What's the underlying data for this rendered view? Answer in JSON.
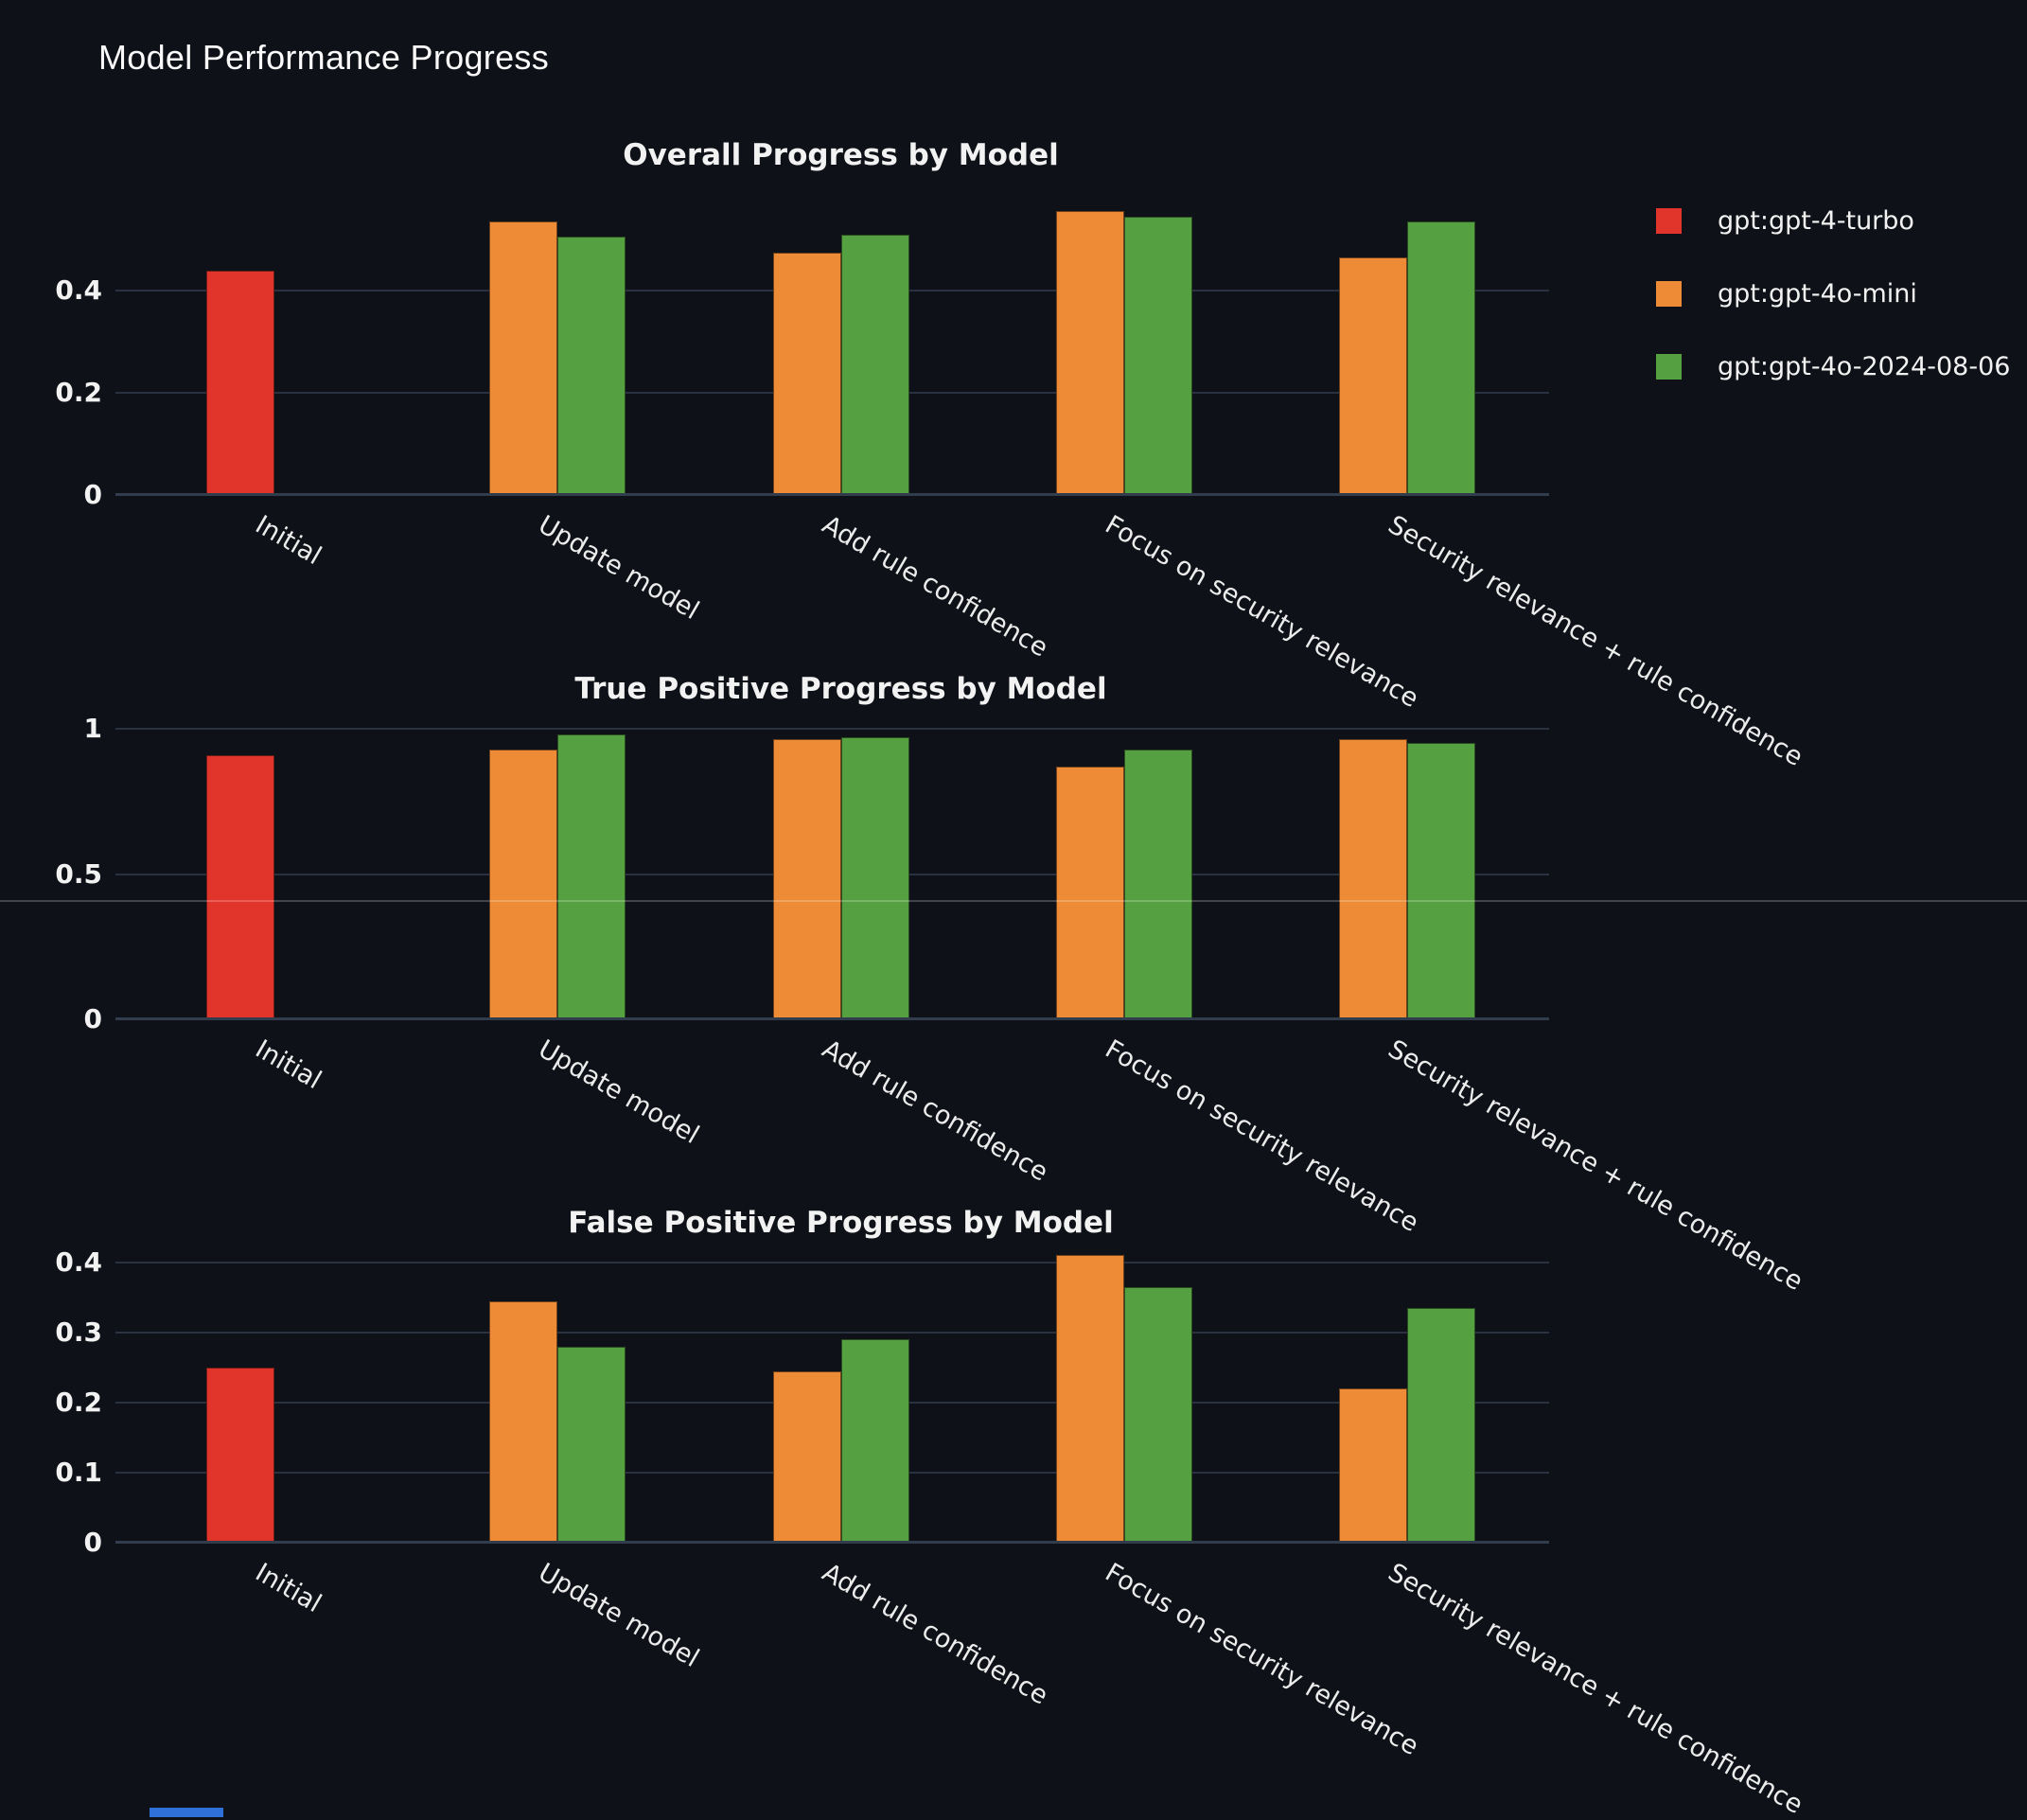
{
  "page": {
    "title": "Model Performance Progress",
    "background_color": "#0e1117",
    "text_color": "#fafafa",
    "gridline_color": "#2a3140",
    "divider_color": "rgba(255,255,255,0.22)",
    "taskbar_fragment_color": "#2f6fd8"
  },
  "legend": {
    "items": [
      {
        "label": "gpt:gpt-4-turbo",
        "color": "#e1342b"
      },
      {
        "label": "gpt:gpt-4o-mini",
        "color": "#ee8b36"
      },
      {
        "label": "gpt:gpt-4o-2024-08-06",
        "color": "#55a041"
      }
    ]
  },
  "chart_data": [
    {
      "type": "bar",
      "title": "Overall Progress by Model",
      "categories": [
        "Initial",
        "Update model",
        "Add rule confidence",
        "Focus on security relevance",
        "Security relevance + rule confidence"
      ],
      "series": [
        {
          "name": "gpt:gpt-4-turbo",
          "color": "#e1342b",
          "values": [
            0.44,
            null,
            null,
            null,
            null
          ]
        },
        {
          "name": "gpt:gpt-4o-mini",
          "color": "#ee8b36",
          "values": [
            null,
            0.535,
            0.475,
            0.555,
            0.465
          ]
        },
        {
          "name": "gpt:gpt-4o-2024-08-06",
          "color": "#55a041",
          "values": [
            null,
            0.505,
            0.51,
            0.545,
            0.535
          ]
        }
      ],
      "xlabel": "",
      "ylabel": "",
      "yticks": [
        0,
        0.2,
        0.4
      ],
      "ylim": [
        0,
        0.58
      ],
      "grid": true,
      "legend_position": "outside upper right"
    },
    {
      "type": "bar",
      "title": "True Positive Progress by Model",
      "categories": [
        "Initial",
        "Update model",
        "Add rule confidence",
        "Focus on security relevance",
        "Security relevance + rule confidence"
      ],
      "series": [
        {
          "name": "gpt:gpt-4-turbo",
          "color": "#e1342b",
          "values": [
            0.91,
            null,
            null,
            null,
            null
          ]
        },
        {
          "name": "gpt:gpt-4o-mini",
          "color": "#ee8b36",
          "values": [
            null,
            0.93,
            0.965,
            0.87,
            0.965
          ]
        },
        {
          "name": "gpt:gpt-4o-2024-08-06",
          "color": "#55a041",
          "values": [
            null,
            0.98,
            0.97,
            0.93,
            0.95
          ]
        }
      ],
      "xlabel": "",
      "ylabel": "",
      "yticks": [
        0,
        0.5,
        1
      ],
      "ylim": [
        0,
        1.046
      ],
      "grid": true,
      "legend_position": "none"
    },
    {
      "type": "bar",
      "title": "False Positive Progress by Model",
      "categories": [
        "Initial",
        "Update model",
        "Add rule confidence",
        "Focus on security relevance",
        "Security relevance + rule confidence"
      ],
      "series": [
        {
          "name": "gpt:gpt-4-turbo",
          "color": "#e1342b",
          "values": [
            0.25,
            null,
            null,
            null,
            null
          ]
        },
        {
          "name": "gpt:gpt-4o-mini",
          "color": "#ee8b36",
          "values": [
            null,
            0.345,
            0.245,
            0.41,
            0.22
          ]
        },
        {
          "name": "gpt:gpt-4o-2024-08-06",
          "color": "#55a041",
          "values": [
            null,
            0.28,
            0.29,
            0.365,
            0.335
          ]
        }
      ],
      "xlabel": "",
      "ylabel": "",
      "yticks": [
        0,
        0.1,
        0.2,
        0.3,
        0.4
      ],
      "ylim": [
        0,
        0.416
      ],
      "grid": true,
      "legend_position": "none"
    }
  ]
}
